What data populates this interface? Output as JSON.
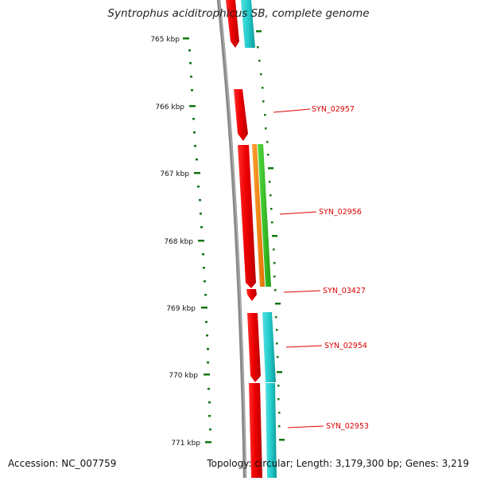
{
  "title": "Syntrophus aciditrophicus SB, complete genome",
  "accession": "Accession: NC_007759",
  "topology": "Topology: circular; Length: 3,179,300 bp; Genes: 3,219",
  "ruler": {
    "labels": [
      "765 kbp",
      "766 kbp",
      "767 kbp",
      "768 kbp",
      "769 kbp",
      "770 kbp",
      "771 kbp"
    ]
  },
  "genes": [
    {
      "name": "SYN_02957",
      "color": "#dd0000"
    },
    {
      "name": "SYN_02956",
      "color": "#dd0000"
    },
    {
      "name": "SYN_03427",
      "color": "#dd0000"
    },
    {
      "name": "SYN_02954",
      "color": "#dd0000"
    },
    {
      "name": "SYN_02953",
      "color": "#dd0000"
    }
  ],
  "colors": {
    "cds": "#ee0000",
    "orange_track": "#ff8800",
    "green_track": "#33bb22",
    "cyan_track": "#22cccc",
    "ruler": "#117711",
    "backbone": "#888888",
    "label": "#dd0000"
  }
}
